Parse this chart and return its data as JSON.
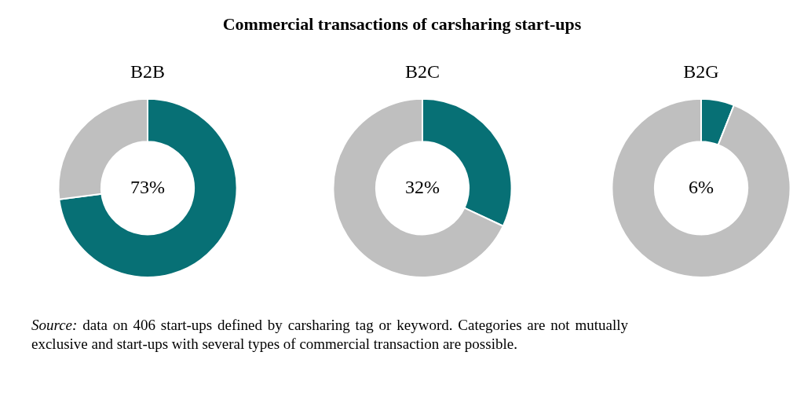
{
  "chart_data": [
    {
      "type": "other",
      "title": "Commercial transactions of carsharing start-ups"
    },
    {
      "type": "donut",
      "title": "B2B",
      "categories": [
        null,
        null
      ],
      "values": [
        73,
        27
      ],
      "colors": [
        "#077075",
        "#bfbfbf"
      ],
      "value_labels": [
        "73%",
        null
      ]
    },
    {
      "type": "donut",
      "title": "B2C",
      "categories": [
        null,
        null
      ],
      "values": [
        32,
        68
      ],
      "colors": [
        "#077075",
        "#bfbfbf"
      ],
      "value_labels": [
        "32%",
        null
      ]
    },
    {
      "type": "donut",
      "title": "B2G",
      "categories": [
        null,
        null
      ],
      "values": [
        6,
        94
      ],
      "colors": [
        "#077075",
        "#bfbfbf"
      ],
      "value_labels": [
        "6%",
        null
      ]
    },
    {
      "type": "other",
      "annotations": [
        "Source: data on 406 start-ups defined by carsharing tag or keyword. Categories are not mutually exclusive and start-ups with several types of commercial transaction are possible."
      ]
    }
  ]
}
